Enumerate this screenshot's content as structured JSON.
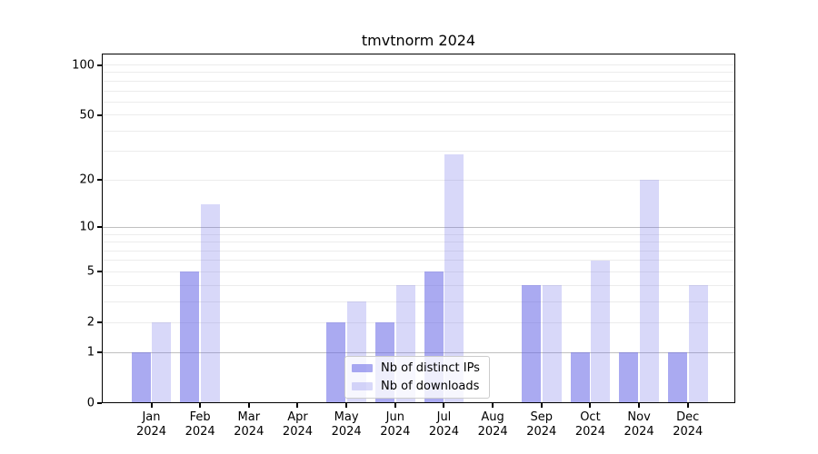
{
  "chart_data": {
    "type": "bar",
    "title": "tmvtnorm 2024",
    "x_tick_labels": [
      {
        "month": "Jan",
        "year": "2024"
      },
      {
        "month": "Feb",
        "year": "2024"
      },
      {
        "month": "Mar",
        "year": "2024"
      },
      {
        "month": "Apr",
        "year": "2024"
      },
      {
        "month": "May",
        "year": "2024"
      },
      {
        "month": "Jun",
        "year": "2024"
      },
      {
        "month": "Jul",
        "year": "2024"
      },
      {
        "month": "Aug",
        "year": "2024"
      },
      {
        "month": "Sep",
        "year": "2024"
      },
      {
        "month": "Oct",
        "year": "2024"
      },
      {
        "month": "Nov",
        "year": "2024"
      },
      {
        "month": "Dec",
        "year": "2024"
      }
    ],
    "series": [
      {
        "name": "Nb of distinct IPs",
        "values": [
          1,
          5,
          0,
          0,
          2,
          2,
          5,
          0,
          4,
          1,
          1,
          1
        ],
        "color": "rgba(100,100,230,0.55)",
        "rendered_hex": "#a9a9f1"
      },
      {
        "name": "Nb of downloads",
        "values": [
          2,
          14,
          0,
          0,
          3,
          4,
          29,
          0,
          4,
          6,
          20,
          4
        ],
        "color": "rgba(100,100,230,0.25)",
        "rendered_hex": "#d8d8f8"
      }
    ],
    "y_axis": {
      "scale": "log1p",
      "tick_labels": [
        "0",
        "1",
        "2",
        "5",
        "10",
        "20",
        "50",
        "100"
      ],
      "tick_values": [
        0,
        1,
        2,
        5,
        10,
        20,
        50,
        100
      ],
      "gridlines_dark": [
        1,
        10
      ],
      "gridlines_light": [
        2,
        3,
        4,
        5,
        6,
        7,
        8,
        9,
        20,
        30,
        40,
        50,
        60,
        70,
        80,
        90,
        100
      ],
      "ylim": [
        0,
        115
      ]
    },
    "legend": {
      "position": "lower center",
      "items": [
        "Nb of distinct IPs",
        "Nb of downloads"
      ]
    },
    "colors": {
      "grid_dark": "#c0c0c0",
      "grid_light": "#ececec",
      "axis": "#000000",
      "text": "#000000",
      "background": "#ffffff"
    }
  }
}
